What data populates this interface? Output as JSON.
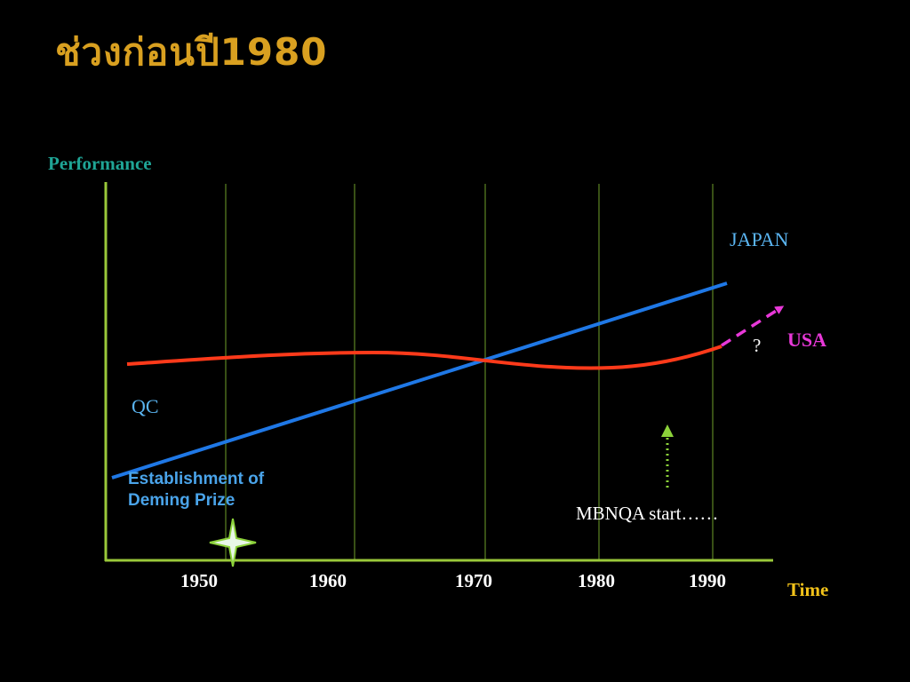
{
  "slide": {
    "title": "ช่วงก่อนปี1980"
  },
  "chart_data": {
    "type": "line",
    "ylabel": "Performance",
    "xlabel": "Time",
    "x_ticks": [
      "1950",
      "1960",
      "1970",
      "1980",
      "1990"
    ],
    "series": [
      {
        "name": "JAPAN",
        "color": "#1f78e6"
      },
      {
        "name": "USA",
        "color": "#ff3a1a",
        "projection_color": "#e838d8",
        "projection_label": "?"
      }
    ],
    "annotations": {
      "qc": "QC",
      "deming_line1": "Establishment of",
      "deming_line2": "Deming Prize",
      "mbnqa": "MBNQA start……"
    },
    "colors": {
      "axis": "#9ac83a",
      "gridline": "#4a6a1c",
      "mbnqa_arrow": "#8cd23a",
      "star_fill": "#e8f7e8",
      "star_outline": "#8cd23a"
    }
  }
}
